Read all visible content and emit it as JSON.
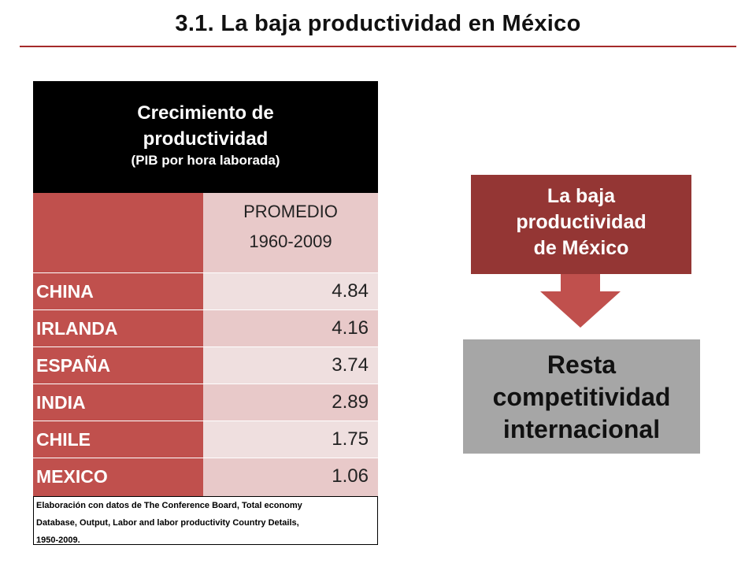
{
  "title": "3.1.  La baja productividad en México",
  "table": {
    "header_line1": "Crecimiento de",
    "header_line2": "productividad",
    "header_line3": "(PIB por hora laborada)",
    "period_label": "PROMEDIO",
    "period_range": "1960-2009",
    "rows": [
      {
        "country": "CHINA",
        "value": "4.84"
      },
      {
        "country": "IRLANDA",
        "value": "4.16"
      },
      {
        "country": "ESPAÑA",
        "value": "3.74"
      },
      {
        "country": "INDIA",
        "value": "2.89"
      },
      {
        "country": "CHILE",
        "value": "1.75"
      },
      {
        "country": "MEXICO",
        "value": "1.06"
      }
    ],
    "source_note_line1": "Elaboración con datos de The Conference Board, Total economy",
    "source_note_line2": "Database, Output, Labor and labor productivity Country Details,",
    "source_note_line3": "1950-2009."
  },
  "diagram": {
    "cause_line1": "La baja",
    "cause_line2": "productividad",
    "cause_line3": "de México",
    "effect_line1": "Resta",
    "effect_line2": "competitividad",
    "effect_line3": "internacional"
  },
  "colors": {
    "title_rule": "#a52a2a",
    "table_header": "#000000",
    "country_cell": "#c0504d",
    "value_cell_light": "#efdfdf",
    "value_cell_dark": "#e8c9c9",
    "cause_box": "#943634",
    "arrow": "#c0504d",
    "effect_box": "#a6a6a6"
  }
}
